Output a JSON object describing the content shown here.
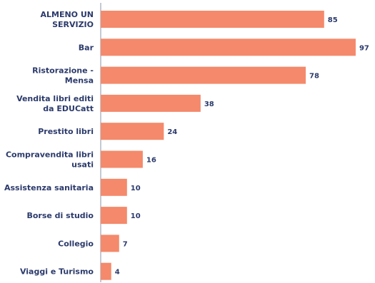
{
  "chart_data": {
    "type": "bar",
    "orientation": "horizontal",
    "categories": [
      "ALMENO UN SERVIZIO",
      "Bar",
      "Ristorazione - Mensa",
      "Vendita libri editi da EDUCatt",
      "Prestito libri",
      "Compravendita libri usati",
      "Assistenza sanitaria",
      "Borse di studio",
      "Collegio",
      "Viaggi e Turismo"
    ],
    "category_lines": [
      [
        "ALMENO UN",
        "SERVIZIO"
      ],
      [
        "Bar"
      ],
      [
        "Ristorazione -",
        "Mensa"
      ],
      [
        "Vendita libri editi",
        "da EDUCatt"
      ],
      [
        "Prestito libri"
      ],
      [
        "Compravendita libri",
        "usati"
      ],
      [
        "Assistenza sanitaria"
      ],
      [
        "Borse di studio"
      ],
      [
        "Collegio"
      ],
      [
        "Viaggi e Turismo"
      ]
    ],
    "values": [
      85,
      97,
      78,
      38,
      24,
      16,
      10,
      10,
      7,
      4
    ],
    "value_labels": [
      "85",
      "97",
      "78",
      "38",
      "24",
      "16",
      "10",
      "10",
      "7",
      "4"
    ],
    "xlim": [
      0,
      100
    ],
    "bar_color": "#f4896b",
    "text_color": "#2b3a6b",
    "axis_color": "#8a93a8",
    "grid": false,
    "title": "",
    "xlabel": "",
    "ylabel": ""
  }
}
